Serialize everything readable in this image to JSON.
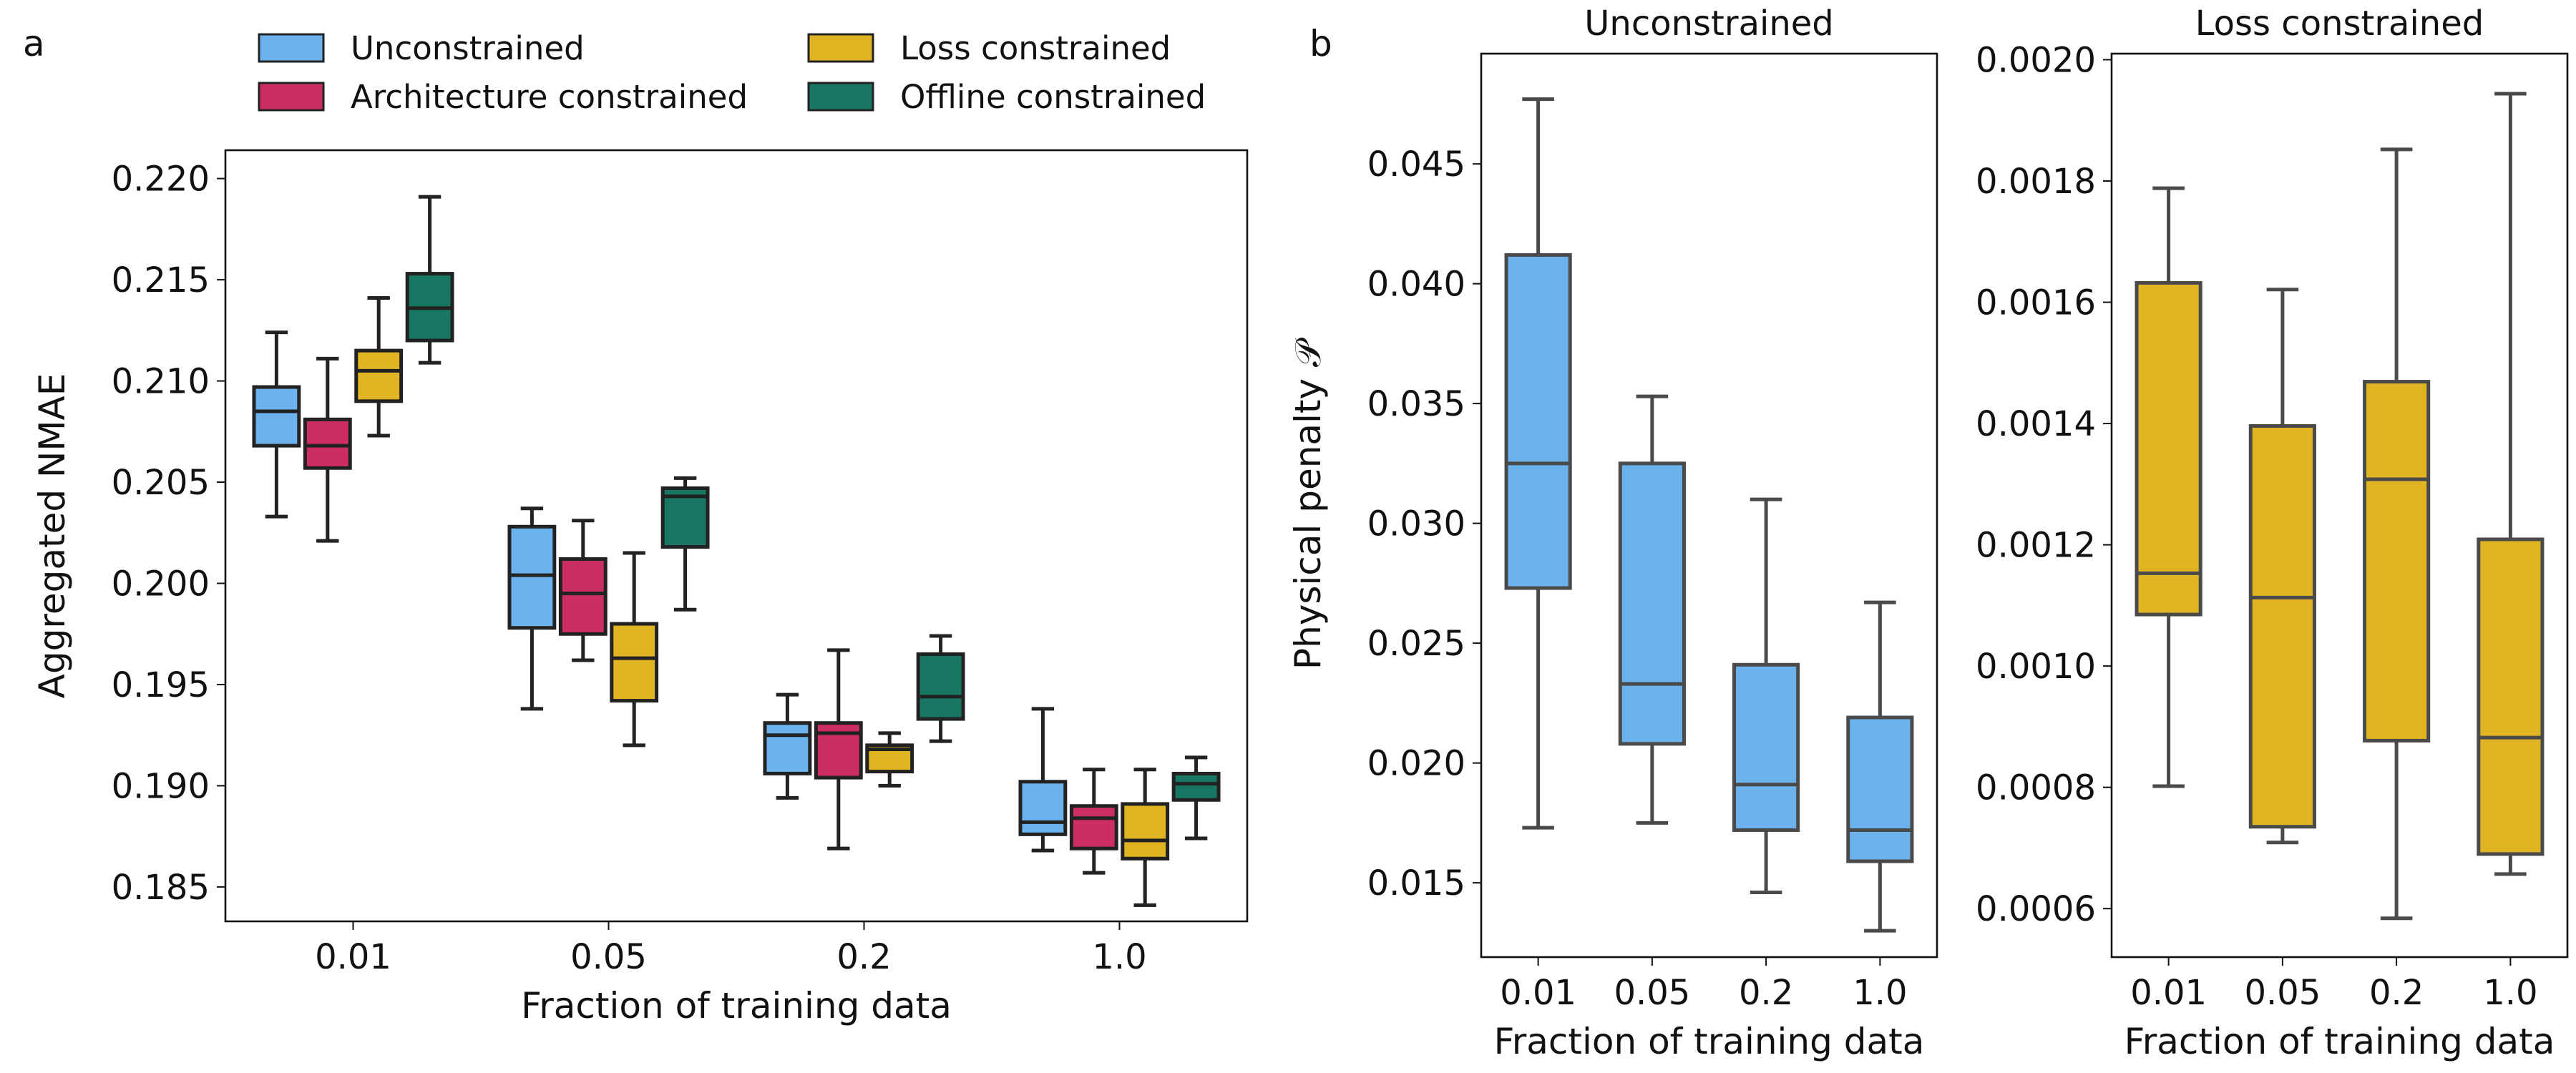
{
  "panel_labels": {
    "a": "a",
    "b": "b"
  },
  "chart_data": [
    {
      "type": "box",
      "panel": "a",
      "title": "",
      "xlabel": "Fraction of training data",
      "ylabel": "Aggregated NMAE",
      "categories": [
        "0.01",
        "0.05",
        "0.2",
        "1.0"
      ],
      "ylim": [
        0.1833,
        0.2214
      ],
      "yticks": [
        0.185,
        0.19,
        0.195,
        0.2,
        0.205,
        0.21,
        0.215,
        0.22
      ],
      "ytick_labels": [
        "0.185",
        "0.190",
        "0.195",
        "0.200",
        "0.205",
        "0.210",
        "0.215",
        "0.220"
      ],
      "legend_position": "top",
      "series": [
        {
          "name": "Unconstrained",
          "color": "#6cb2ed",
          "boxes": [
            {
              "whislo": 0.2033,
              "q1": 0.2068,
              "med": 0.2085,
              "q3": 0.2097,
              "whishi": 0.2124
            },
            {
              "whislo": 0.1938,
              "q1": 0.1978,
              "med": 0.2004,
              "q3": 0.2028,
              "whishi": 0.2037
            },
            {
              "whislo": 0.1894,
              "q1": 0.1906,
              "med": 0.1925,
              "q3": 0.1931,
              "whishi": 0.1945
            },
            {
              "whislo": 0.1868,
              "q1": 0.1876,
              "med": 0.1882,
              "q3": 0.1902,
              "whishi": 0.1938
            }
          ]
        },
        {
          "name": "Architecture constrained",
          "color": "#cc2e63",
          "boxes": [
            {
              "whislo": 0.2021,
              "q1": 0.2057,
              "med": 0.2068,
              "q3": 0.2081,
              "whishi": 0.2111
            },
            {
              "whislo": 0.1962,
              "q1": 0.1975,
              "med": 0.1995,
              "q3": 0.2012,
              "whishi": 0.2031
            },
            {
              "whislo": 0.1869,
              "q1": 0.1904,
              "med": 0.1926,
              "q3": 0.1931,
              "whishi": 0.1967
            },
            {
              "whislo": 0.1857,
              "q1": 0.1869,
              "med": 0.1884,
              "q3": 0.189,
              "whishi": 0.1908
            }
          ]
        },
        {
          "name": "Loss constrained",
          "color": "#e1b423",
          "boxes": [
            {
              "whislo": 0.2073,
              "q1": 0.209,
              "med": 0.2105,
              "q3": 0.2115,
              "whishi": 0.2141
            },
            {
              "whislo": 0.192,
              "q1": 0.1942,
              "med": 0.1963,
              "q3": 0.198,
              "whishi": 0.2015
            },
            {
              "whislo": 0.19,
              "q1": 0.1907,
              "med": 0.1918,
              "q3": 0.192,
              "whishi": 0.1926
            },
            {
              "whislo": 0.1841,
              "q1": 0.1864,
              "med": 0.1873,
              "q3": 0.1891,
              "whishi": 0.1908
            }
          ]
        },
        {
          "name": "Offline constrained",
          "color": "#187762",
          "boxes": [
            {
              "whislo": 0.2109,
              "q1": 0.212,
              "med": 0.2136,
              "q3": 0.2153,
              "whishi": 0.2191
            },
            {
              "whislo": 0.1987,
              "q1": 0.2018,
              "med": 0.2043,
              "q3": 0.2047,
              "whishi": 0.2052
            },
            {
              "whislo": 0.1922,
              "q1": 0.1933,
              "med": 0.1944,
              "q3": 0.1965,
              "whishi": 0.1974
            },
            {
              "whislo": 0.1874,
              "q1": 0.1893,
              "med": 0.1901,
              "q3": 0.1906,
              "whishi": 0.1914
            }
          ]
        }
      ]
    },
    {
      "type": "box",
      "panel": "b",
      "title": "Unconstrained",
      "xlabel": "Fraction of training data",
      "ylabel": "Physical penalty 𝒫",
      "categories": [
        "0.01",
        "0.05",
        "0.2",
        "1.0"
      ],
      "ylim": [
        0.0119,
        0.0496
      ],
      "yticks": [
        0.015,
        0.02,
        0.025,
        0.03,
        0.035,
        0.04,
        0.045
      ],
      "ytick_labels": [
        "0.015",
        "0.020",
        "0.025",
        "0.030",
        "0.035",
        "0.040",
        "0.045"
      ],
      "color": "#6cb2ed",
      "boxes": [
        {
          "whislo": 0.0173,
          "q1": 0.0273,
          "med": 0.0325,
          "q3": 0.0412,
          "whishi": 0.0477
        },
        {
          "whislo": 0.0175,
          "q1": 0.0208,
          "med": 0.0233,
          "q3": 0.0325,
          "whishi": 0.0353
        },
        {
          "whislo": 0.0146,
          "q1": 0.0172,
          "med": 0.0191,
          "q3": 0.0241,
          "whishi": 0.031
        },
        {
          "whislo": 0.013,
          "q1": 0.0159,
          "med": 0.0172,
          "q3": 0.0219,
          "whishi": 0.0267
        }
      ]
    },
    {
      "type": "box",
      "panel": "b",
      "title": "Loss constrained",
      "xlabel": "Fraction of training data",
      "ylabel": "",
      "categories": [
        "0.01",
        "0.05",
        "0.2",
        "1.0"
      ],
      "ylim": [
        0.00052,
        0.00201
      ],
      "yticks": [
        0.0006,
        0.0008,
        0.001,
        0.0012,
        0.0014,
        0.0016,
        0.0018,
        0.002
      ],
      "ytick_labels": [
        "0.0006",
        "0.0008",
        "0.0010",
        "0.0012",
        "0.0014",
        "0.0016",
        "0.0018",
        "0.0020"
      ],
      "color": "#e1b423",
      "boxes": [
        {
          "whislo": 0.000802,
          "q1": 0.001085,
          "med": 0.001153,
          "q3": 0.001632,
          "whishi": 0.001788
        },
        {
          "whislo": 0.000709,
          "q1": 0.000735,
          "med": 0.001113,
          "q3": 0.001396,
          "whishi": 0.001621
        },
        {
          "whislo": 0.000584,
          "q1": 0.000877,
          "med": 0.001308,
          "q3": 0.001469,
          "whishi": 0.001852
        },
        {
          "whislo": 0.000657,
          "q1": 0.00069,
          "med": 0.000882,
          "q3": 0.001209,
          "whishi": 0.001944
        }
      ]
    }
  ]
}
